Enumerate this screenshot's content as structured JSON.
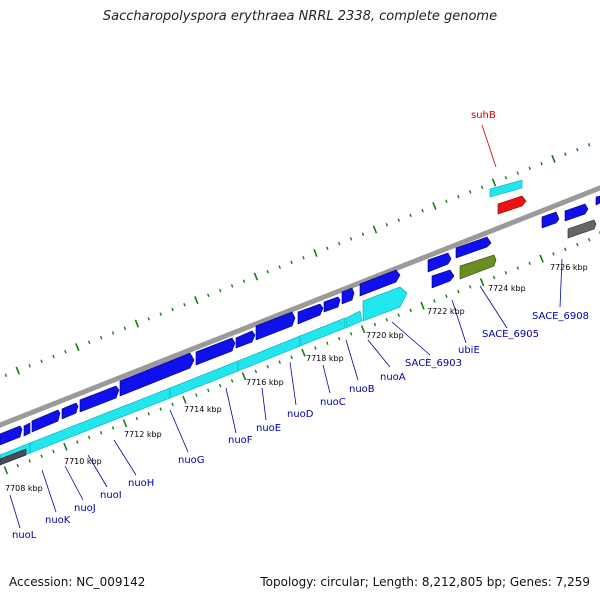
{
  "title": "Saccharopolyspora erythraea NRRL 2338, complete genome",
  "footer": {
    "accession": "Accession: NC_009142",
    "topology": "Topology: circular; Length: 8,212,805 bp; Genes: 7,259"
  },
  "colors": {
    "backbone": "#9a9a9a",
    "cds": "#1010ee",
    "rna": "#22e6ee",
    "tick": "#1a7a1a",
    "highlight": "#ee1111",
    "olive": "#6b8e23",
    "grey": "#666666"
  },
  "kbp_labels": [
    "7708 kbp",
    "7710 kbp",
    "7712 kbp",
    "7714 kbp",
    "7716 kbp",
    "7718 kbp",
    "7720 kbp",
    "7722 kbp",
    "7724 kbp",
    "7726 kbp"
  ],
  "genes": [
    "nuoL",
    "nuoK",
    "nuoJ",
    "nuoI",
    "nuoH",
    "nuoG",
    "nuoF",
    "nuoE",
    "nuoD",
    "nuoC",
    "nuoB",
    "nuoA",
    "SACE_6903",
    "ubiE",
    "SACE_6905",
    "SACE_6908",
    "suhB"
  ]
}
